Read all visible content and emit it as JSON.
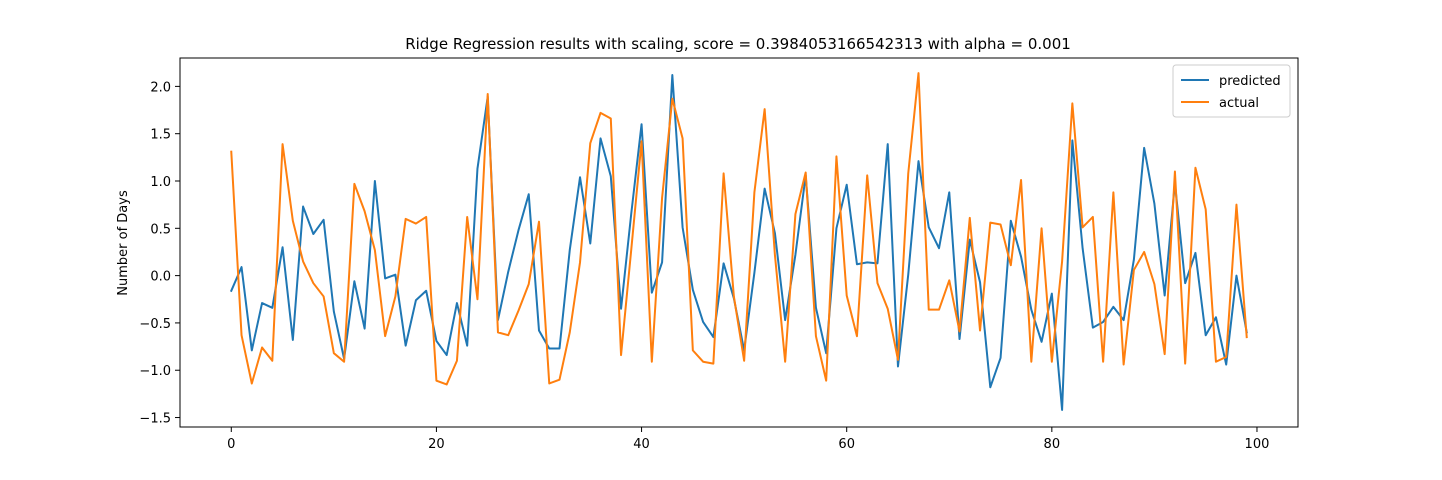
{
  "chart_data": {
    "type": "line",
    "title": "Ridge Regression results with scaling, score = 0.3984053166542313 with alpha = 0.001",
    "xlabel": "",
    "ylabel": "Number of Days",
    "xlim": [
      -5,
      104
    ],
    "ylim": [
      -1.6,
      2.3
    ],
    "xticks": [
      0,
      20,
      40,
      60,
      80,
      100
    ],
    "yticks": [
      -1.5,
      -1.0,
      -0.5,
      0.0,
      0.5,
      1.0,
      1.5,
      2.0
    ],
    "xtick_labels": [
      "0",
      "20",
      "40",
      "60",
      "80",
      "100"
    ],
    "ytick_labels": [
      "−1.5",
      "−1.0",
      "−0.5",
      "0.0",
      "0.5",
      "1.0",
      "1.5",
      "2.0"
    ],
    "grid": false,
    "legend_position": "top-right",
    "x": [
      0,
      1,
      2,
      3,
      4,
      5,
      6,
      7,
      8,
      9,
      10,
      11,
      12,
      13,
      14,
      15,
      16,
      17,
      18,
      19,
      20,
      21,
      22,
      23,
      24,
      25,
      26,
      27,
      28,
      29,
      30,
      31,
      32,
      33,
      34,
      35,
      36,
      37,
      38,
      39,
      40,
      41,
      42,
      43,
      44,
      45,
      46,
      47,
      48,
      49,
      50,
      51,
      52,
      53,
      54,
      55,
      56,
      57,
      58,
      59,
      60,
      61,
      62,
      63,
      64,
      65,
      66,
      67,
      68,
      69,
      70,
      71,
      72,
      73,
      74,
      75,
      76,
      77,
      78,
      79,
      80,
      81,
      82,
      83,
      84,
      85,
      86,
      87,
      88,
      89,
      90,
      91,
      92,
      93,
      94,
      95,
      96,
      97,
      98,
      99
    ],
    "series": [
      {
        "name": "predicted",
        "color": "#1f77b4",
        "values": [
          -0.16,
          0.09,
          -0.79,
          -0.29,
          -0.34,
          0.3,
          -0.68,
          0.73,
          0.44,
          0.59,
          -0.38,
          -0.88,
          -0.06,
          -0.56,
          1.0,
          -0.03,
          0.01,
          -0.74,
          -0.26,
          -0.16,
          -0.69,
          -0.84,
          -0.29,
          -0.74,
          1.13,
          1.89,
          -0.47,
          0.04,
          0.48,
          0.86,
          -0.58,
          -0.77,
          -0.77,
          0.27,
          1.04,
          0.34,
          1.45,
          1.05,
          -0.35,
          0.66,
          1.6,
          -0.18,
          0.14,
          2.12,
          0.51,
          -0.15,
          -0.49,
          -0.65,
          0.13,
          -0.24,
          -0.79,
          0.03,
          0.92,
          0.45,
          -0.47,
          0.22,
          1.06,
          -0.34,
          -0.82,
          0.5,
          0.96,
          0.12,
          0.14,
          0.13,
          1.39,
          -0.96,
          0.01,
          1.21,
          0.51,
          0.29,
          0.88,
          -0.67,
          0.38,
          -0.07,
          -1.18,
          -0.87,
          0.58,
          0.2,
          -0.36,
          -0.7,
          -0.19,
          -1.42,
          1.43,
          0.29,
          -0.55,
          -0.49,
          -0.33,
          -0.47,
          0.17,
          1.35,
          0.76,
          -0.21,
          0.98,
          -0.08,
          0.24,
          -0.63,
          -0.44,
          -0.94,
          0.0,
          -0.6
        ]
      },
      {
        "name": "actual",
        "color": "#ff7f0e",
        "values": [
          1.31,
          -0.63,
          -1.14,
          -0.76,
          -0.9,
          1.39,
          0.58,
          0.15,
          -0.08,
          -0.22,
          -0.82,
          -0.91,
          0.97,
          0.68,
          0.27,
          -0.64,
          -0.22,
          0.6,
          0.55,
          0.62,
          -1.11,
          -1.15,
          -0.9,
          0.62,
          -0.25,
          1.92,
          -0.6,
          -0.63,
          -0.37,
          -0.09,
          0.57,
          -1.14,
          -1.1,
          -0.6,
          0.14,
          1.4,
          1.72,
          1.66,
          -0.84,
          0.28,
          1.42,
          -0.91,
          0.82,
          1.87,
          1.45,
          -0.79,
          -0.91,
          -0.93,
          1.08,
          -0.22,
          -0.9,
          0.88,
          1.76,
          0.22,
          -0.91,
          0.65,
          1.09,
          -0.64,
          -1.11,
          1.26,
          -0.21,
          -0.64,
          1.06,
          -0.08,
          -0.35,
          -0.89,
          1.08,
          2.14,
          -0.36,
          -0.36,
          -0.05,
          -0.59,
          0.61,
          -0.58,
          0.56,
          0.54,
          0.11,
          1.01,
          -0.91,
          0.5,
          -0.91,
          0.15,
          1.82,
          0.51,
          0.62,
          -0.91,
          0.88,
          -0.94,
          0.06,
          0.25,
          -0.09,
          -0.83,
          1.1,
          -0.93,
          1.14,
          0.7,
          -0.91,
          -0.86,
          0.75,
          -0.65
        ]
      }
    ]
  }
}
